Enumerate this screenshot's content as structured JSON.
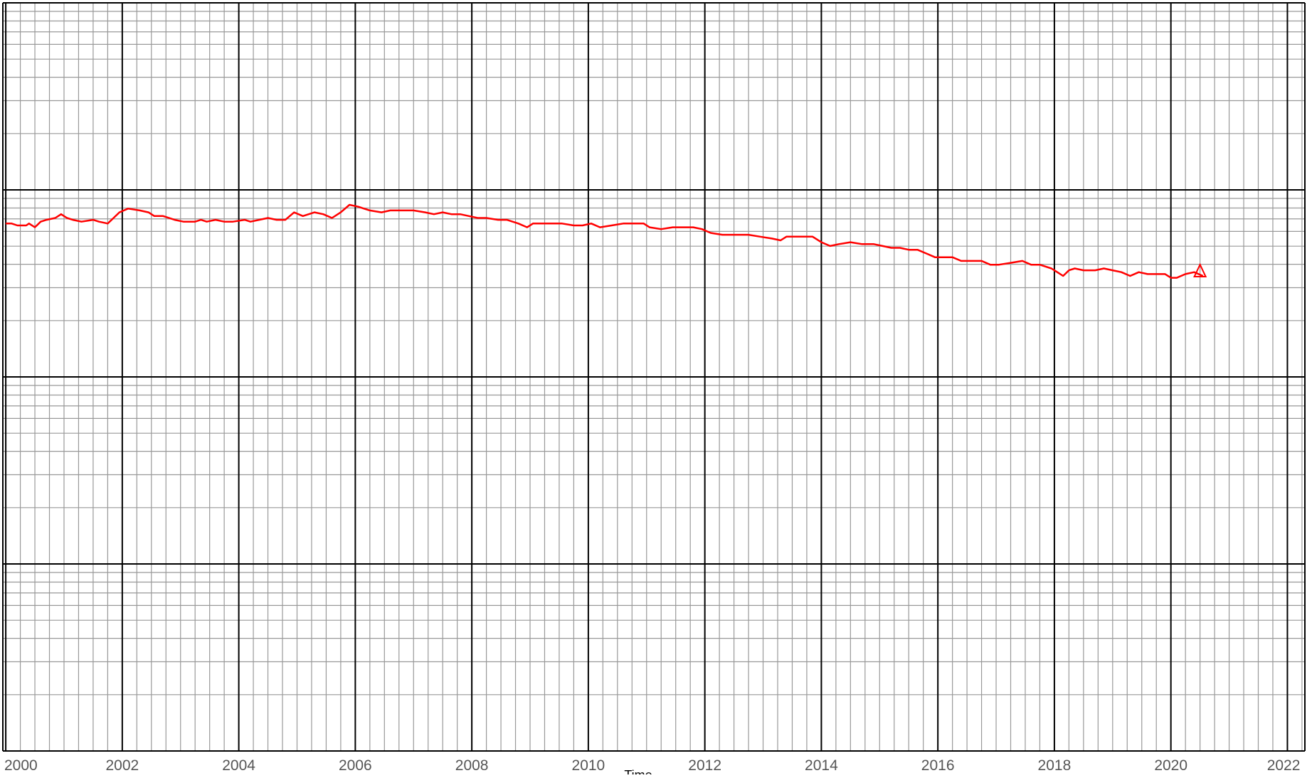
{
  "chart_data": {
    "type": "line",
    "title": "",
    "xlabel": "Time",
    "ylabel": "",
    "xlim": [
      1999.95,
      2022.3
    ],
    "y_scale": "log",
    "y_decades": 4,
    "y_tick_labels": [],
    "x_ticks": [
      2000,
      2002,
      2004,
      2006,
      2008,
      2010,
      2012,
      2014,
      2016,
      2018,
      2020,
      2022
    ],
    "x_tick_labels": [
      "2000",
      "2002",
      "2004",
      "2006",
      "2008",
      "2010",
      "2012",
      "2014",
      "2016",
      "2018",
      "2020",
      "2022"
    ],
    "grid": true,
    "legend": "none",
    "colors": {
      "line": "#ff0000",
      "major_grid": "#000000",
      "minor_grid": "#999999"
    },
    "series": [
      {
        "values_decade_fraction": [
          [
            2000.0,
            0.82
          ],
          [
            2000.1,
            0.82
          ],
          [
            2000.2,
            0.81
          ],
          [
            2000.35,
            0.81
          ],
          [
            2000.4,
            0.82
          ],
          [
            2000.5,
            0.8
          ],
          [
            2000.6,
            0.83
          ],
          [
            2000.7,
            0.84
          ],
          [
            2000.85,
            0.85
          ],
          [
            2000.95,
            0.87
          ],
          [
            2001.05,
            0.85
          ],
          [
            2001.15,
            0.84
          ],
          [
            2001.3,
            0.83
          ],
          [
            2001.5,
            0.84
          ],
          [
            2001.6,
            0.83
          ],
          [
            2001.75,
            0.82
          ],
          [
            2001.85,
            0.85
          ],
          [
            2001.95,
            0.88
          ],
          [
            2002.1,
            0.9
          ],
          [
            2002.3,
            0.89
          ],
          [
            2002.45,
            0.88
          ],
          [
            2002.55,
            0.86
          ],
          [
            2002.7,
            0.86
          ],
          [
            2002.9,
            0.84
          ],
          [
            2003.05,
            0.83
          ],
          [
            2003.25,
            0.83
          ],
          [
            2003.35,
            0.84
          ],
          [
            2003.45,
            0.83
          ],
          [
            2003.6,
            0.84
          ],
          [
            2003.75,
            0.83
          ],
          [
            2003.9,
            0.83
          ],
          [
            2004.1,
            0.84
          ],
          [
            2004.2,
            0.83
          ],
          [
            2004.35,
            0.84
          ],
          [
            2004.5,
            0.85
          ],
          [
            2004.65,
            0.84
          ],
          [
            2004.8,
            0.84
          ],
          [
            2004.95,
            0.88
          ],
          [
            2005.1,
            0.86
          ],
          [
            2005.2,
            0.87
          ],
          [
            2005.3,
            0.88
          ],
          [
            2005.45,
            0.87
          ],
          [
            2005.6,
            0.85
          ],
          [
            2005.75,
            0.88
          ],
          [
            2005.9,
            0.92
          ],
          [
            2006.05,
            0.91
          ],
          [
            2006.25,
            0.89
          ],
          [
            2006.45,
            0.88
          ],
          [
            2006.6,
            0.89
          ],
          [
            2006.8,
            0.89
          ],
          [
            2007.0,
            0.89
          ],
          [
            2007.2,
            0.88
          ],
          [
            2007.35,
            0.87
          ],
          [
            2007.5,
            0.88
          ],
          [
            2007.65,
            0.87
          ],
          [
            2007.8,
            0.87
          ],
          [
            2007.95,
            0.86
          ],
          [
            2008.1,
            0.85
          ],
          [
            2008.25,
            0.85
          ],
          [
            2008.45,
            0.84
          ],
          [
            2008.6,
            0.84
          ],
          [
            2008.8,
            0.82
          ],
          [
            2008.95,
            0.8
          ],
          [
            2009.05,
            0.82
          ],
          [
            2009.25,
            0.82
          ],
          [
            2009.4,
            0.82
          ],
          [
            2009.55,
            0.82
          ],
          [
            2009.75,
            0.81
          ],
          [
            2009.9,
            0.81
          ],
          [
            2010.05,
            0.82
          ],
          [
            2010.2,
            0.8
          ],
          [
            2010.4,
            0.81
          ],
          [
            2010.6,
            0.82
          ],
          [
            2010.8,
            0.82
          ],
          [
            2010.95,
            0.82
          ],
          [
            2011.05,
            0.8
          ],
          [
            2011.25,
            0.79
          ],
          [
            2011.45,
            0.8
          ],
          [
            2011.6,
            0.8
          ],
          [
            2011.8,
            0.8
          ],
          [
            2011.95,
            0.79
          ],
          [
            2012.1,
            0.77
          ],
          [
            2012.3,
            0.76
          ],
          [
            2012.55,
            0.76
          ],
          [
            2012.75,
            0.76
          ],
          [
            2012.95,
            0.75
          ],
          [
            2013.15,
            0.74
          ],
          [
            2013.3,
            0.73
          ],
          [
            2013.4,
            0.75
          ],
          [
            2013.55,
            0.75
          ],
          [
            2013.7,
            0.75
          ],
          [
            2013.85,
            0.75
          ],
          [
            2014.0,
            0.72
          ],
          [
            2014.15,
            0.7
          ],
          [
            2014.3,
            0.71
          ],
          [
            2014.5,
            0.72
          ],
          [
            2014.7,
            0.71
          ],
          [
            2014.9,
            0.71
          ],
          [
            2015.05,
            0.7
          ],
          [
            2015.2,
            0.69
          ],
          [
            2015.35,
            0.69
          ],
          [
            2015.5,
            0.68
          ],
          [
            2015.65,
            0.68
          ],
          [
            2015.8,
            0.66
          ],
          [
            2015.95,
            0.64
          ],
          [
            2016.1,
            0.64
          ],
          [
            2016.25,
            0.64
          ],
          [
            2016.4,
            0.62
          ],
          [
            2016.6,
            0.62
          ],
          [
            2016.75,
            0.62
          ],
          [
            2016.9,
            0.6
          ],
          [
            2017.05,
            0.6
          ],
          [
            2017.25,
            0.61
          ],
          [
            2017.45,
            0.62
          ],
          [
            2017.6,
            0.6
          ],
          [
            2017.75,
            0.6
          ],
          [
            2017.95,
            0.58
          ],
          [
            2018.05,
            0.56
          ],
          [
            2018.15,
            0.54
          ],
          [
            2018.25,
            0.57
          ],
          [
            2018.35,
            0.58
          ],
          [
            2018.5,
            0.57
          ],
          [
            2018.7,
            0.57
          ],
          [
            2018.85,
            0.58
          ],
          [
            2019.0,
            0.57
          ],
          [
            2019.15,
            0.56
          ],
          [
            2019.3,
            0.54
          ],
          [
            2019.45,
            0.56
          ],
          [
            2019.6,
            0.55
          ],
          [
            2019.75,
            0.55
          ],
          [
            2019.9,
            0.55
          ],
          [
            2020.0,
            0.53
          ],
          [
            2020.1,
            0.53
          ],
          [
            2020.25,
            0.55
          ],
          [
            2020.4,
            0.56
          ],
          [
            2020.55,
            0.54
          ]
        ]
      }
    ],
    "end_marker": {
      "shape": "triangle",
      "x": 2020.5,
      "y_decade_fraction": 0.555
    }
  }
}
